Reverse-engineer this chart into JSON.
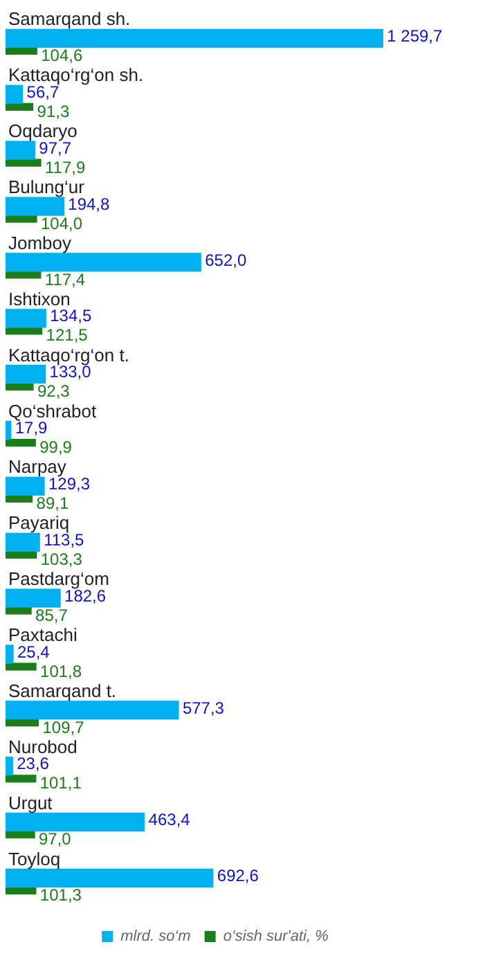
{
  "chart_data": {
    "type": "bar",
    "orientation": "horizontal",
    "categories": [
      "Samarqand sh.",
      "Kattaqo‘rg‘on sh.",
      "Oqdaryo",
      "Bulung‘ur",
      "Jomboy",
      "Ishtixon",
      "Kattaqo‘rg‘on t.",
      "Qo‘shrabot",
      "Narpay",
      "Payariq",
      "Pastdarg‘om",
      "Paxtachi",
      "Samarqand t.",
      "Nurobod",
      "Urgut",
      "Toyloq"
    ],
    "series": [
      {
        "name": "mlrd. so‘m",
        "color": "#00b0f0",
        "values": [
          1259.7,
          56.7,
          97.7,
          194.8,
          652.0,
          134.5,
          133.0,
          17.9,
          129.3,
          113.5,
          182.6,
          25.4,
          577.3,
          23.6,
          463.4,
          692.6
        ],
        "value_labels": [
          "1 259,7",
          "56,7",
          "97,7",
          "194,8",
          "652,0",
          "134,5",
          "133,0",
          "17,9",
          "129,3",
          "113,5",
          "182,6",
          "25,4",
          "577,3",
          "23,6",
          "463,4",
          "692,6"
        ]
      },
      {
        "name": "o‘sish sur'ati, %",
        "color": "#1a7f1a",
        "values": [
          104.6,
          91.3,
          117.9,
          104.0,
          117.4,
          121.5,
          92.3,
          99.9,
          89.1,
          103.3,
          85.7,
          101.8,
          109.7,
          101.1,
          97.0,
          101.3
        ],
        "value_labels": [
          "104,6",
          "91,3",
          "117,9",
          "104,0",
          "117,4",
          "121,5",
          "92,3",
          "99,9",
          "89,1",
          "103,3",
          "85,7",
          "101,8",
          "109,7",
          "101,1",
          "97,0",
          "101,3"
        ]
      }
    ],
    "legend": "bottom",
    "tick_labels": false
  }
}
